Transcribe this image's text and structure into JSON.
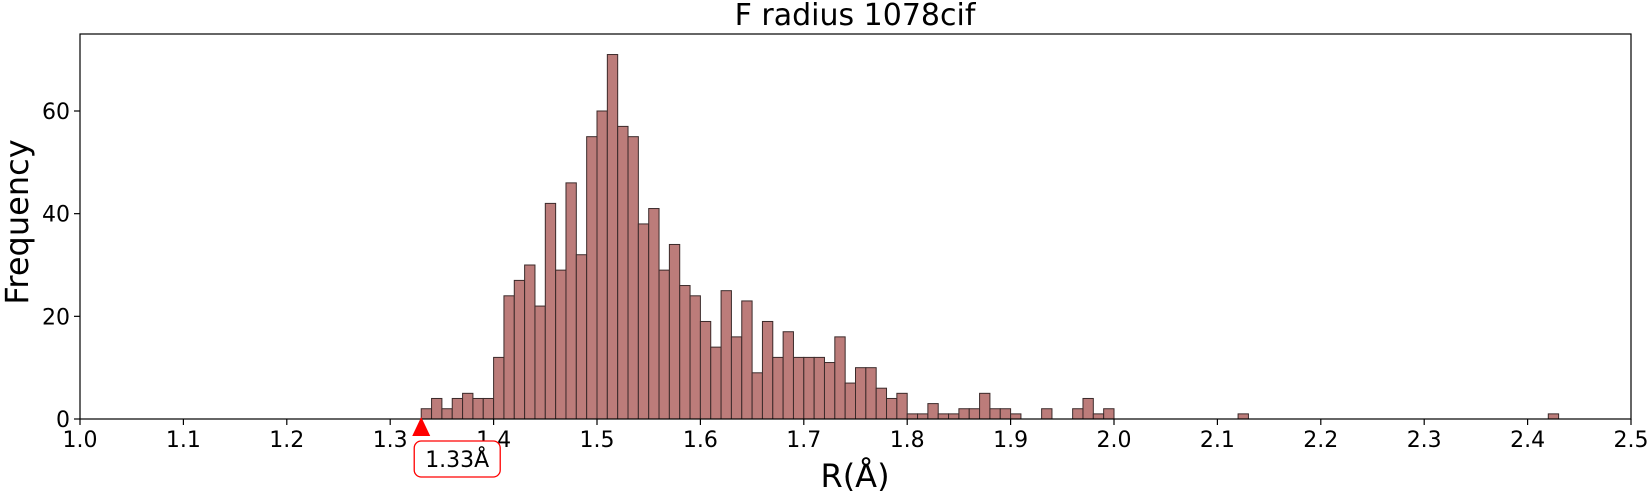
{
  "chart_data": {
    "type": "bar",
    "title": "F radius  1078cif",
    "xlabel": "R(Å)",
    "ylabel": "Frequency",
    "xlim": [
      1.0,
      2.5
    ],
    "ylim": [
      0,
      75
    ],
    "xticks": [
      "1.0",
      "1.1",
      "1.2",
      "1.3",
      "1.4",
      "1.5",
      "1.6",
      "1.7",
      "1.8",
      "1.9",
      "2.0",
      "2.1",
      "2.2",
      "2.3",
      "2.4",
      "2.5"
    ],
    "yticks": [
      "0",
      "20",
      "40",
      "60"
    ],
    "grid": false,
    "bar_color": "#bc7c7a",
    "bar_edge_color": "#3b2a2a",
    "bin_width": 0.01,
    "bins": [
      {
        "x": 1.33,
        "value": 2
      },
      {
        "x": 1.34,
        "value": 4
      },
      {
        "x": 1.35,
        "value": 2
      },
      {
        "x": 1.36,
        "value": 4
      },
      {
        "x": 1.37,
        "value": 5
      },
      {
        "x": 1.38,
        "value": 4
      },
      {
        "x": 1.39,
        "value": 4
      },
      {
        "x": 1.4,
        "value": 12
      },
      {
        "x": 1.41,
        "value": 24
      },
      {
        "x": 1.42,
        "value": 27
      },
      {
        "x": 1.43,
        "value": 30
      },
      {
        "x": 1.44,
        "value": 22
      },
      {
        "x": 1.45,
        "value": 42
      },
      {
        "x": 1.46,
        "value": 29
      },
      {
        "x": 1.47,
        "value": 46
      },
      {
        "x": 1.48,
        "value": 32
      },
      {
        "x": 1.49,
        "value": 55
      },
      {
        "x": 1.5,
        "value": 60
      },
      {
        "x": 1.51,
        "value": 71
      },
      {
        "x": 1.52,
        "value": 57
      },
      {
        "x": 1.53,
        "value": 55
      },
      {
        "x": 1.54,
        "value": 38
      },
      {
        "x": 1.55,
        "value": 41
      },
      {
        "x": 1.56,
        "value": 29
      },
      {
        "x": 1.57,
        "value": 34
      },
      {
        "x": 1.58,
        "value": 26
      },
      {
        "x": 1.59,
        "value": 24
      },
      {
        "x": 1.6,
        "value": 19
      },
      {
        "x": 1.61,
        "value": 14
      },
      {
        "x": 1.62,
        "value": 25
      },
      {
        "x": 1.63,
        "value": 16
      },
      {
        "x": 1.64,
        "value": 23
      },
      {
        "x": 1.65,
        "value": 9
      },
      {
        "x": 1.66,
        "value": 19
      },
      {
        "x": 1.67,
        "value": 12
      },
      {
        "x": 1.68,
        "value": 17
      },
      {
        "x": 1.69,
        "value": 12
      },
      {
        "x": 1.7,
        "value": 12
      },
      {
        "x": 1.71,
        "value": 12
      },
      {
        "x": 1.72,
        "value": 11
      },
      {
        "x": 1.73,
        "value": 16
      },
      {
        "x": 1.74,
        "value": 7
      },
      {
        "x": 1.75,
        "value": 10
      },
      {
        "x": 1.76,
        "value": 10
      },
      {
        "x": 1.77,
        "value": 6
      },
      {
        "x": 1.78,
        "value": 4
      },
      {
        "x": 1.79,
        "value": 5
      },
      {
        "x": 1.8,
        "value": 1
      },
      {
        "x": 1.81,
        "value": 1
      },
      {
        "x": 1.82,
        "value": 3
      },
      {
        "x": 1.83,
        "value": 1
      },
      {
        "x": 1.84,
        "value": 1
      },
      {
        "x": 1.85,
        "value": 2
      },
      {
        "x": 1.86,
        "value": 2
      },
      {
        "x": 1.87,
        "value": 5
      },
      {
        "x": 1.88,
        "value": 2
      },
      {
        "x": 1.89,
        "value": 2
      },
      {
        "x": 1.9,
        "value": 1
      },
      {
        "x": 1.93,
        "value": 2
      },
      {
        "x": 1.96,
        "value": 2
      },
      {
        "x": 1.97,
        "value": 4
      },
      {
        "x": 1.98,
        "value": 1
      },
      {
        "x": 1.99,
        "value": 2
      },
      {
        "x": 2.12,
        "value": 1
      },
      {
        "x": 2.42,
        "value": 1
      }
    ],
    "annotation": {
      "x": 1.33,
      "label": "1.33Å",
      "color": "#ff0000"
    }
  }
}
